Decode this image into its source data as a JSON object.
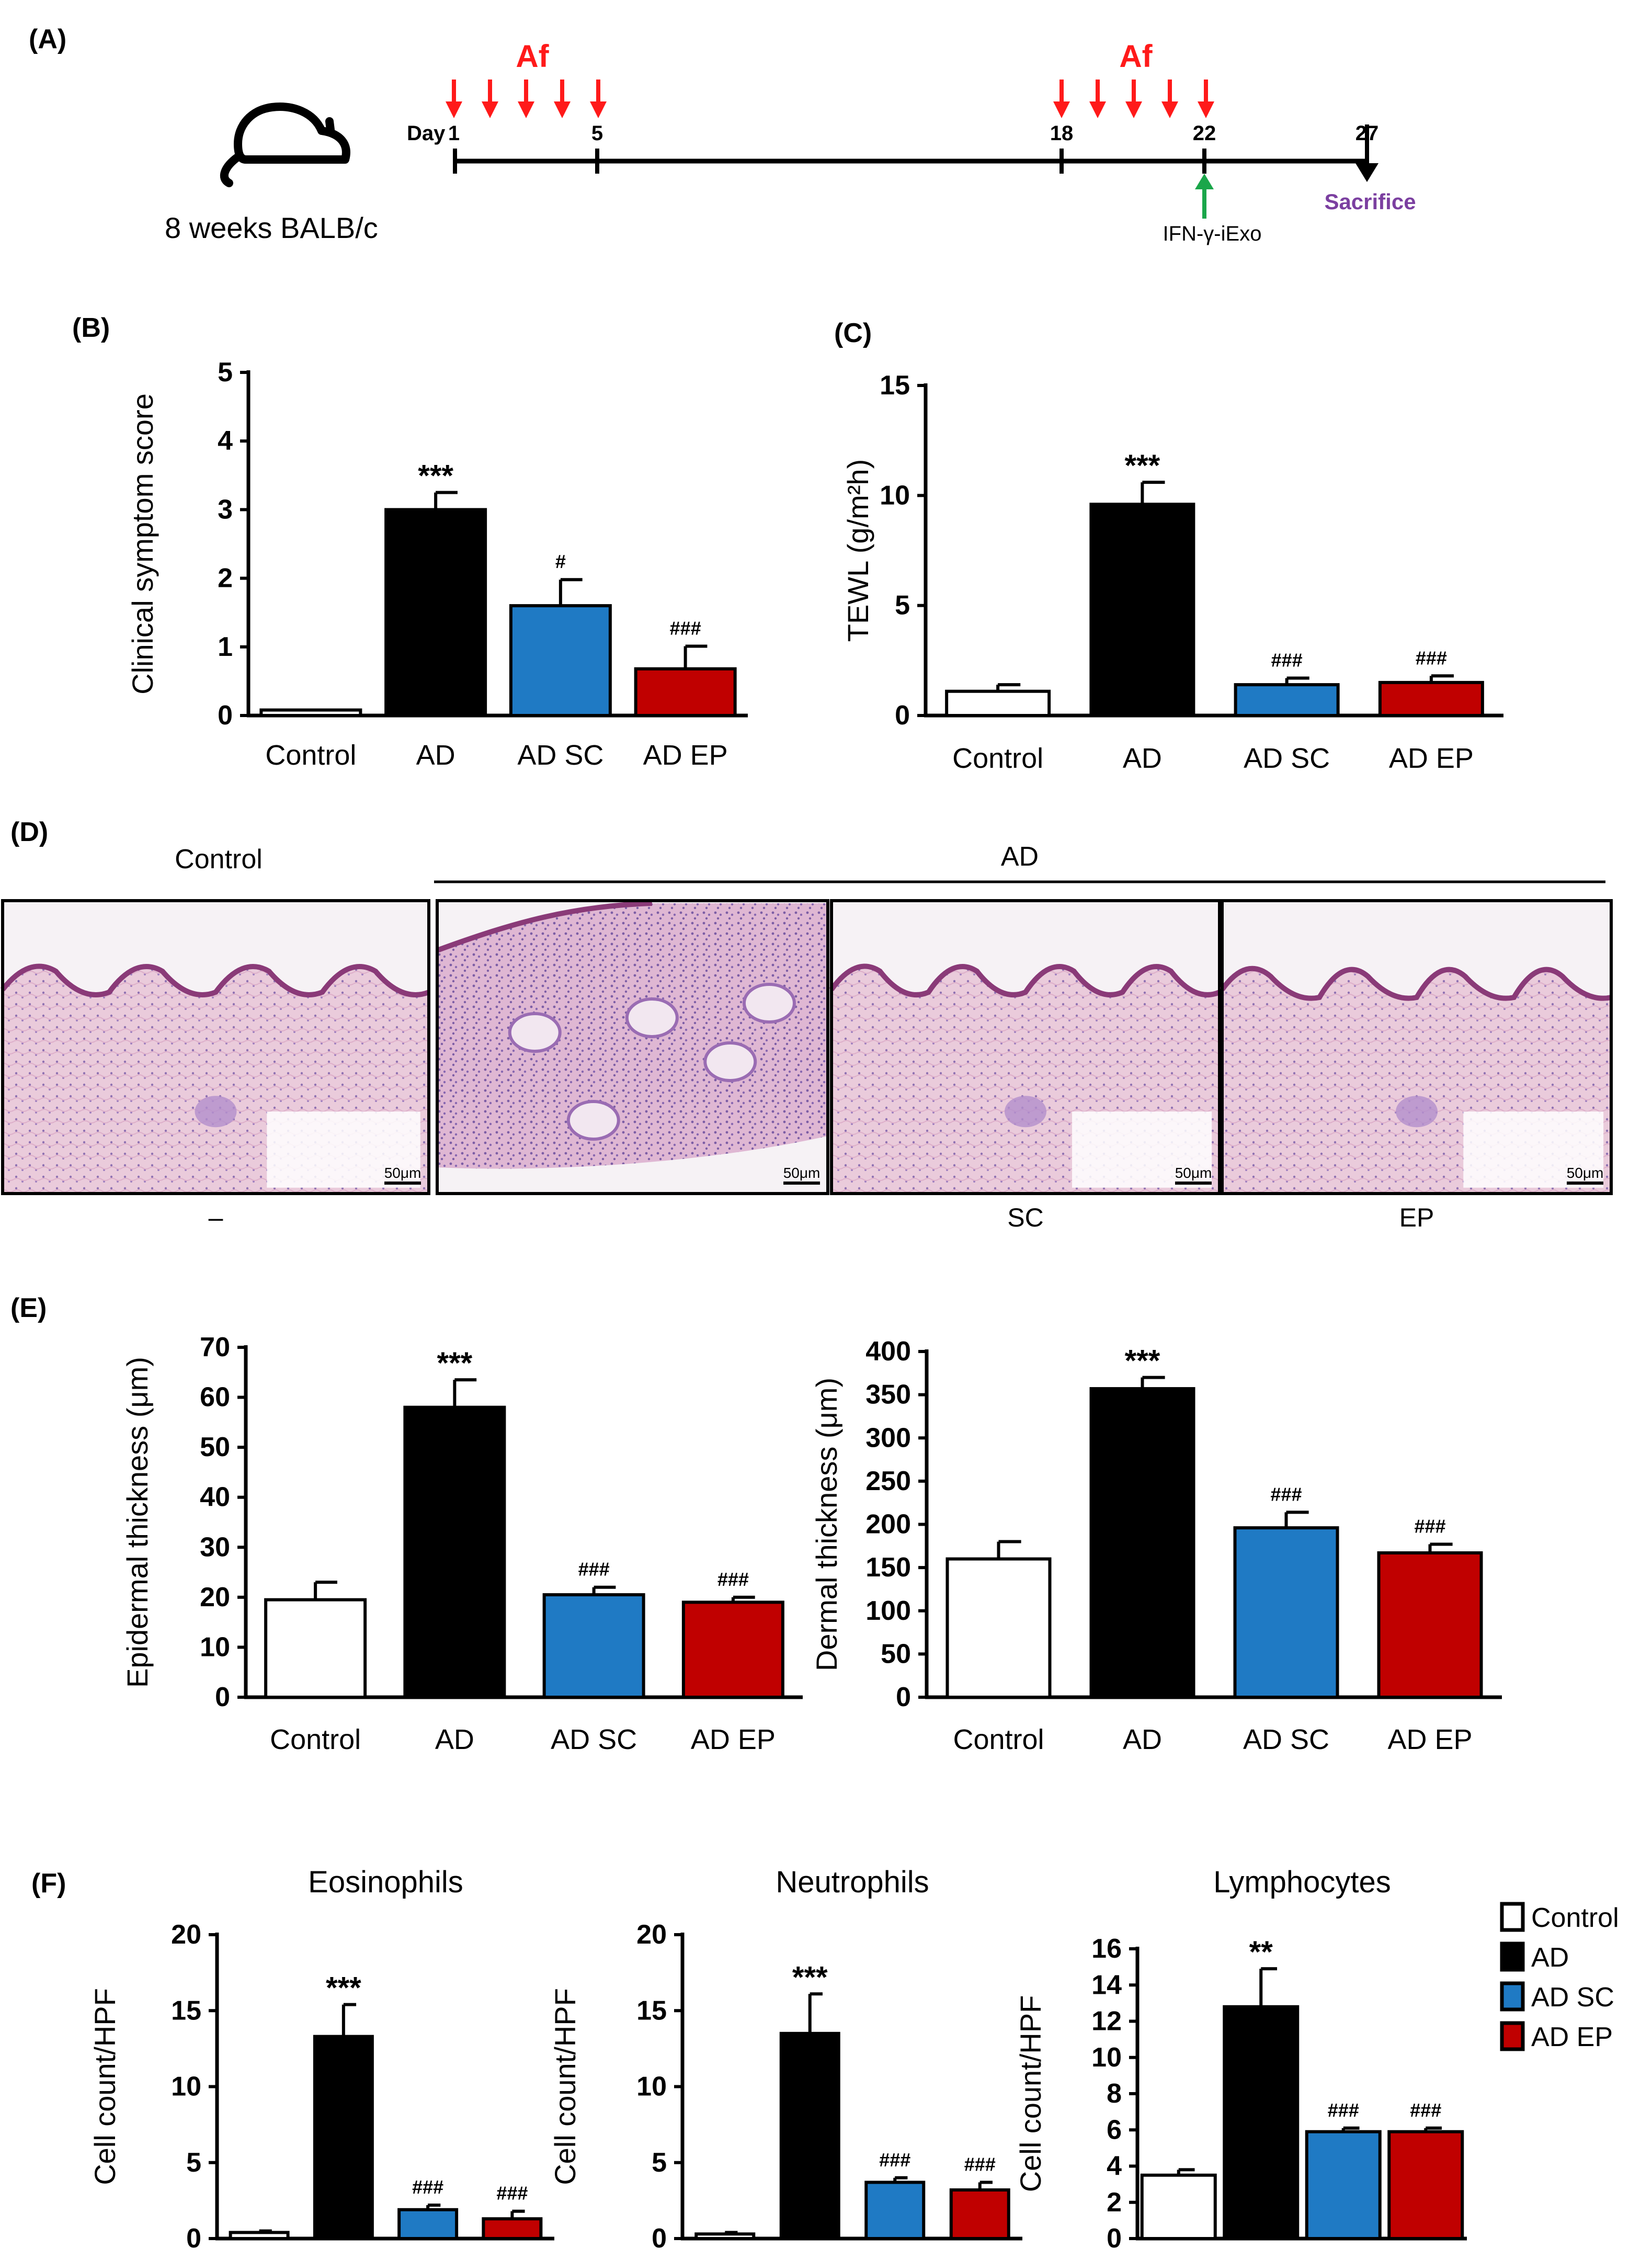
{
  "colors": {
    "control": "#ffffff",
    "ad": "#000000",
    "ad_sc": "#1f7ac4",
    "ad_ep": "#c00000",
    "arrow_red": "#ff1a1a",
    "arrow_green": "#1aa64a",
    "sacrifice": "#7b3fa0"
  },
  "panel_a": {
    "label": "(A)",
    "mouse_label": "8 weeks BALB/c",
    "day_prefix": "Day",
    "days": [
      "1",
      "5",
      "18",
      "22",
      "27"
    ],
    "af_label_1": "Af",
    "af_label_2": "Af",
    "treatment_label": "IFN-γ-iExo",
    "sacrifice_label": "Sacrifice"
  },
  "panel_d": {
    "label": "(D)",
    "group_control": "Control",
    "group_ad": "AD",
    "sublabels": [
      "–",
      "",
      "SC",
      "EP"
    ],
    "scale_bar": "50μm"
  },
  "chart_data": [
    {
      "id": "B",
      "type": "bar",
      "panel_label": "(B)",
      "ylabel": "Clinical symptom score",
      "categories": [
        "Control",
        "AD",
        "AD SC",
        "AD EP"
      ],
      "values": [
        0.08,
        3.0,
        1.6,
        0.68
      ],
      "errors": [
        0,
        0.25,
        0.38,
        0.33
      ],
      "annotations": [
        "",
        "***",
        "#",
        "###"
      ],
      "ylim": [
        0,
        5
      ],
      "yticks": [
        "0",
        "1",
        "2",
        "3",
        "4",
        "5"
      ]
    },
    {
      "id": "C",
      "type": "bar",
      "panel_label": "(C)",
      "ylabel": "TEWL (g/m²h)",
      "categories": [
        "Control",
        "AD",
        "AD SC",
        "AD EP"
      ],
      "values": [
        1.1,
        9.6,
        1.4,
        1.5
      ],
      "errors": [
        0.3,
        1.0,
        0.3,
        0.3
      ],
      "annotations": [
        "",
        "***",
        "###",
        "###"
      ],
      "ylim": [
        0,
        15
      ],
      "yticks": [
        "0",
        "5",
        "10",
        "15"
      ]
    },
    {
      "id": "E1",
      "type": "bar",
      "panel_label": "(E)",
      "ylabel": "Epidermal thickness (μm)",
      "categories": [
        "Control",
        "AD",
        "AD SC",
        "AD EP"
      ],
      "values": [
        19.5,
        58,
        20.5,
        19
      ],
      "errors": [
        3.5,
        5.5,
        1.5,
        1.0
      ],
      "annotations": [
        "",
        "***",
        "###",
        "###"
      ],
      "ylim": [
        0,
        70
      ],
      "yticks": [
        "0",
        "10",
        "20",
        "30",
        "40",
        "50",
        "60",
        "70"
      ]
    },
    {
      "id": "E2",
      "type": "bar",
      "panel_label": "",
      "ylabel": "Dermal thickness (μm)",
      "categories": [
        "Control",
        "AD",
        "AD SC",
        "AD EP"
      ],
      "values": [
        160,
        357,
        196,
        167
      ],
      "errors": [
        20,
        13,
        18,
        10
      ],
      "annotations": [
        "",
        "***",
        "###",
        "###"
      ],
      "ylim": [
        0,
        400
      ],
      "yticks": [
        "0",
        "50",
        "100",
        "150",
        "200",
        "250",
        "300",
        "350",
        "400"
      ]
    },
    {
      "id": "F1",
      "type": "bar",
      "panel_label": "(F)",
      "title": "Eosinophils",
      "ylabel": "Cell count/HPF",
      "categories": [
        "Control",
        "AD",
        "AD SC",
        "AD EP"
      ],
      "values": [
        0.4,
        13.3,
        1.9,
        1.3
      ],
      "errors": [
        0.1,
        2.1,
        0.3,
        0.5
      ],
      "annotations": [
        "",
        "***",
        "###",
        "###"
      ],
      "ylim": [
        0,
        20
      ],
      "yticks": [
        "0",
        "5",
        "10",
        "15",
        "20"
      ]
    },
    {
      "id": "F2",
      "type": "bar",
      "panel_label": "",
      "title": "Neutrophils",
      "ylabel": "Cell count/HPF",
      "categories": [
        "Control",
        "AD",
        "AD SC",
        "AD EP"
      ],
      "values": [
        0.3,
        13.5,
        3.7,
        3.2
      ],
      "errors": [
        0.1,
        2.6,
        0.3,
        0.5
      ],
      "annotations": [
        "",
        "***",
        "###",
        "###"
      ],
      "ylim": [
        0,
        20
      ],
      "yticks": [
        "0",
        "5",
        "10",
        "15",
        "20"
      ]
    },
    {
      "id": "F3",
      "type": "bar",
      "panel_label": "",
      "title": "Lymphocytes",
      "ylabel": "Cell count/HPF",
      "categories": [
        "Control",
        "AD",
        "AD SC",
        "AD EP"
      ],
      "values": [
        3.5,
        12.8,
        5.9,
        5.9
      ],
      "errors": [
        0.3,
        2.1,
        0.2,
        0.2
      ],
      "annotations": [
        "",
        "**",
        "###",
        "###"
      ],
      "ylim": [
        0,
        16
      ],
      "yticks": [
        "0",
        "2",
        "4",
        "6",
        "8",
        "10",
        "12",
        "14",
        "16"
      ]
    }
  ],
  "legend": [
    "Control",
    "AD",
    "AD SC",
    "AD EP"
  ]
}
